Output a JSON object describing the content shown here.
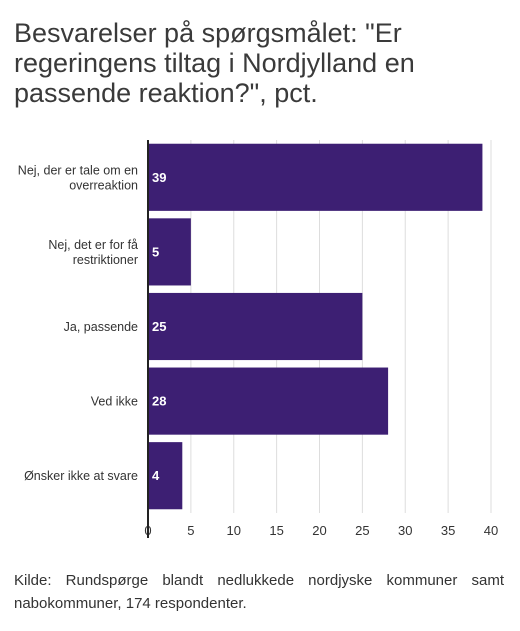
{
  "chart_data": {
    "type": "bar",
    "orientation": "horizontal",
    "title": "Besvarelser på spørgsmålet: \"Er regeringens tiltag i Nordjylland en passende reaktion?\", pct.",
    "categories": [
      "Nej, der er tale om en overreaktion",
      "Nej, det er for få restriktioner",
      "Ja, passende",
      "Ved ikke",
      "Ønsker ikke at svare"
    ],
    "category_lines": [
      [
        "Nej, der er tale om en",
        "overreaktion"
      ],
      [
        "Nej, det er for få",
        "restriktioner"
      ],
      [
        "Ja, passende"
      ],
      [
        "Ved ikke"
      ],
      [
        "Ønsker ikke at svare"
      ]
    ],
    "values": [
      39,
      5,
      25,
      28,
      4
    ],
    "xlim": [
      0,
      40
    ],
    "xticks": [
      0,
      5,
      10,
      15,
      20,
      25,
      30,
      35,
      40
    ],
    "grid": true,
    "bar_color": "#3d1f73",
    "label_color": "#ffffff",
    "source": "Kilde: Rundspørge blandt nedlukkede nordjyske kommuner samt nabokommuner, 174 respondenter."
  }
}
